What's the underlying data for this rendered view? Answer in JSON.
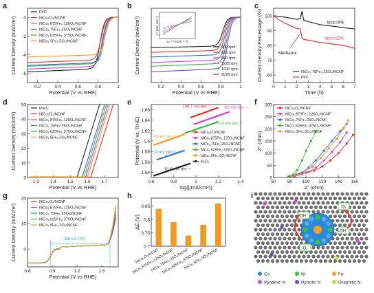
{
  "colors": {
    "black": "#222222",
    "red": "#e8312f",
    "blue": "#2f74d0",
    "magenta": "#d63bd6",
    "green": "#38b838",
    "orange": "#f29a1f",
    "gray": "#9a9a9a",
    "purple": "#6a4bd8",
    "cyan": "#1fb2c6"
  },
  "panels": {
    "a": {
      "label": "a"
    },
    "b": {
      "label": "b"
    },
    "c": {
      "label": "c"
    },
    "d": {
      "label": "d"
    },
    "e": {
      "label": "e"
    },
    "f": {
      "label": "f"
    },
    "g": {
      "label": "g"
    },
    "h": {
      "label": "h"
    },
    "i": {
      "label": "i"
    }
  },
  "chart_data": [
    {
      "panel": "a",
      "type": "line",
      "xlabel": "Potential (V vs RHE)",
      "ylabel": "Current Density (mA/cm²)",
      "xlim": [
        0.1,
        1.0
      ],
      "ylim": [
        -7,
        1
      ],
      "xticks": [
        0.2,
        0.4,
        0.6,
        0.8,
        1.0
      ],
      "yticks": [
        -6,
        -4,
        -2,
        0
      ],
      "legend": [
        "Pt/C",
        "NiCo₂O₄/NCNF",
        "NiCo₁.875Fe₀.125O₄/NCNF",
        "NiCo₁.75Fe₀.25O₄/NCNF",
        "NiCo₁.625Fe₀.375O₄/NCNF",
        "NiCo₁.5Fe₀.5O₄/NCNF"
      ],
      "series": [
        {
          "color": "black",
          "plateau": -5.9,
          "onset": 0.82
        },
        {
          "color": "red",
          "plateau": -4.9,
          "onset": 0.83
        },
        {
          "color": "magenta",
          "plateau": -5.6,
          "onset": 0.84
        },
        {
          "color": "blue",
          "plateau": -5.2,
          "onset": 0.85
        },
        {
          "color": "green",
          "plateau": -5.3,
          "onset": 0.86
        },
        {
          "color": "orange",
          "plateau": -4.3,
          "onset": 0.87
        }
      ]
    },
    {
      "panel": "b",
      "type": "line",
      "xlabel": "Potential (V vs RHE)",
      "ylabel": "Current Density (mA/cm²)",
      "xlim": [
        0.1,
        1.0
      ],
      "ylim": [
        -7,
        1
      ],
      "xticks": [
        0.2,
        0.4,
        0.6,
        0.8,
        1.0
      ],
      "legend": [
        "400 rpm",
        "625 rpm",
        "900 rpm",
        "1225 rpm",
        "1600 rpm",
        "2025 rpm"
      ],
      "series": [
        {
          "color": "black",
          "plateau": -3.3,
          "onset": 0.82
        },
        {
          "color": "red",
          "plateau": -3.8,
          "onset": 0.83
        },
        {
          "color": "blue",
          "plateau": -4.3,
          "onset": 0.84
        },
        {
          "color": "magenta",
          "plateau": -4.9,
          "onset": 0.85
        },
        {
          "color": "green",
          "plateau": -5.3,
          "onset": 0.86
        },
        {
          "color": "purple",
          "plateau": -5.9,
          "onset": 0.87
        }
      ],
      "inset": {
        "xlabel": "ω⁻¹ᐟ² (rpm⁻¹ᐟ²)",
        "ylabel": "j⁻¹ (cm² mA⁻¹)"
      }
    },
    {
      "panel": "c",
      "type": "line",
      "xlabel": "Time (h)",
      "ylabel": "Current Density Percentage (%)",
      "xlim": [
        0,
        7
      ],
      "ylim": [
        55,
        105
      ],
      "xticks": [
        0,
        1,
        2,
        3,
        4,
        5,
        6,
        7
      ],
      "yticks": [
        60,
        70,
        80,
        90,
        100
      ],
      "legend": [
        "NiCo₁.75Fe₀.25O₄/NCNF",
        "Pt/C"
      ],
      "annotations": {
        "loss1": "loss=9%",
        "loss2": "loss=22%",
        "methanol": "Methanol"
      },
      "series": [
        {
          "color": "black",
          "points": [
            [
              0,
              100
            ],
            [
              1,
              99
            ],
            [
              2,
              97.5
            ],
            [
              2.3,
              98
            ],
            [
              2.45,
              103
            ],
            [
              2.6,
              97
            ],
            [
              3,
              96
            ],
            [
              4,
              94
            ],
            [
              5,
              93
            ],
            [
              6,
              92
            ],
            [
              7,
              91
            ]
          ]
        },
        {
          "color": "red",
          "points": [
            [
              0,
              100
            ],
            [
              0.5,
              97
            ],
            [
              1,
              95
            ],
            [
              1.5,
              93
            ],
            [
              2,
              91.5
            ],
            [
              2.3,
              91
            ],
            [
              2.45,
              85
            ],
            [
              2.6,
              84
            ],
            [
              3,
              83.5
            ],
            [
              4,
              82
            ],
            [
              5,
              81
            ],
            [
              6,
              80
            ],
            [
              7,
              78
            ]
          ]
        }
      ]
    },
    {
      "panel": "d",
      "type": "line",
      "xlabel": "Potential (V vs RHE)",
      "ylabel": "Current Density (mA/cm²)",
      "xlim": [
        1.25,
        1.78
      ],
      "ylim": [
        0,
        50
      ],
      "xticks": [
        1.3,
        1.4,
        1.5,
        1.6,
        1.7
      ],
      "yticks": [
        0,
        10,
        20,
        30,
        40,
        50
      ],
      "legend": [
        "RuO₂",
        "NiCo₂O₄/NCNF",
        "NiCo₁.875Fe₀.125O₄/NCNF",
        "NiCo₁.75Fe₀.25O₄/NCNF",
        "NiCo₁.625Fe₀.375O₄/NCNF",
        "NiCo₁.5Fe₀.5O₄/NCNF"
      ],
      "series": [
        {
          "color": "black",
          "onset": 1.54
        },
        {
          "color": "red",
          "onset": 1.62
        },
        {
          "color": "magenta",
          "onset": 1.59
        },
        {
          "color": "blue",
          "onset": 1.57
        },
        {
          "color": "green",
          "onset": 1.58
        },
        {
          "color": "orange",
          "onset": 1.6
        }
      ]
    },
    {
      "panel": "e",
      "type": "scatter",
      "xlabel": "log(j(mA/cm²))",
      "ylabel": "Potential (V vs. RHE)",
      "xlim": [
        0.6,
        1.4
      ],
      "ylim": [
        1.53,
        1.67
      ],
      "xticks": [
        0.6,
        0.8,
        1.0,
        1.2,
        1.4
      ],
      "yticks": [
        1.54,
        1.56,
        1.58,
        1.6,
        1.62,
        1.64,
        1.66
      ],
      "legend": [
        "NiCo₂O₄/NCNF",
        "NiCo₁.875Fe₀.125O₄/NCNF",
        "NiCo₁.75Fe₀.25O₄/NCNF",
        "NiCo₁.625Fe₀.375O₄/NCNF",
        "NiCo₁.5Fe₀.5O₄/NCNF",
        "RuO₂"
      ],
      "slopes": [
        {
          "color": "red",
          "text": "100.7 mV dec⁻¹",
          "x0": 0.95,
          "y0": 1.645,
          "x1": 1.2,
          "y1": 1.664
        },
        {
          "color": "magenta",
          "text": "66 mV dec⁻¹",
          "x0": 0.98,
          "y0": 1.632,
          "x1": 1.3,
          "y1": 1.656
        },
        {
          "color": "green",
          "text": "70.6 mV dec⁻¹",
          "x0": 0.9,
          "y0": 1.615,
          "x1": 1.2,
          "y1": 1.637
        },
        {
          "color": "orange",
          "text": "80 mV dec⁻¹",
          "x0": 0.62,
          "y0": 1.592,
          "x1": 0.9,
          "y1": 1.613
        },
        {
          "color": "blue",
          "text": "72 mV dec⁻¹",
          "x0": 0.65,
          "y0": 1.564,
          "x1": 0.9,
          "y1": 1.582
        },
        {
          "color": "black",
          "text": "81.6 mV dec⁻¹",
          "x0": 0.62,
          "y0": 1.533,
          "x1": 0.95,
          "y1": 1.557
        }
      ]
    },
    {
      "panel": "f",
      "type": "line",
      "xlabel": "Z' (ohm)",
      "ylabel": "Z'' (ohm)",
      "xlim": [
        60,
        160
      ],
      "ylim": [
        0,
        300
      ],
      "xticks": [
        60,
        80,
        100,
        120,
        140,
        160
      ],
      "yticks": [
        0,
        50,
        100,
        150,
        200,
        250,
        300
      ],
      "legend": [
        "NiCo₂O₄/NCNF",
        "NiCo₁.875Fe₀.125O₄/NCNF",
        "NiCo₁.75Fe₀.25O₄/NCNF",
        "NiCo₁.625Fe₀.375O₄/NCNF",
        "NiCo₁.5Fe₀.5O₄/NCNF"
      ],
      "series": [
        {
          "color": "red",
          "points": [
            [
              84,
              5
            ],
            [
              92,
              15
            ],
            [
              100,
              20
            ],
            [
              110,
              28
            ],
            [
              120,
              45
            ],
            [
              130,
              70
            ],
            [
              140,
              100
            ],
            [
              150,
              140
            ],
            [
              158,
              175
            ]
          ]
        },
        {
          "color": "magenta",
          "points": [
            [
              86,
              5
            ],
            [
              95,
              14
            ],
            [
              103,
              22
            ],
            [
              112,
              40
            ],
            [
              122,
              70
            ],
            [
              132,
              105
            ],
            [
              142,
              145
            ],
            [
              150,
              185
            ]
          ]
        },
        {
          "color": "blue",
          "points": [
            [
              80,
              5
            ],
            [
              88,
              12
            ],
            [
              95,
              20
            ],
            [
              103,
              40
            ],
            [
              112,
              70
            ],
            [
              122,
              110
            ],
            [
              132,
              150
            ],
            [
              142,
              190
            ],
            [
              150,
              220
            ]
          ]
        },
        {
          "color": "green",
          "points": [
            [
              78,
              4
            ],
            [
              84,
              12
            ],
            [
              89,
              30
            ],
            [
              95,
              70
            ],
            [
              100,
              110
            ],
            [
              106,
              150
            ],
            [
              112,
              190
            ]
          ]
        },
        {
          "color": "orange",
          "points": [
            [
              82,
              4
            ],
            [
              90,
              10
            ],
            [
              98,
              20
            ],
            [
              108,
              45
            ],
            [
              118,
              80
            ],
            [
              128,
              120
            ],
            [
              138,
              160
            ],
            [
              146,
              200
            ],
            [
              152,
              235
            ]
          ]
        }
      ]
    },
    {
      "panel": "g",
      "type": "line",
      "xlabel": "Potential (V vs RHE)",
      "ylabel": "Current Density (mA/cm²)",
      "xlim": [
        0.6,
        1.7
      ],
      "ylim": [
        -7,
        20
      ],
      "xticks": [
        0.6,
        0.9,
        1.2,
        1.5
      ],
      "yticks": [
        0,
        10,
        20
      ],
      "legend": [
        "NiCo₂O₄/NCNF",
        "NiCo₁.875Fe₀.125O₄/NCNF",
        "NiCo₁.75Fe₀.25O₄/NCNF",
        "NiCo₁.625Fe₀.375O₄/NCNF",
        "NiCo₁.5Fe₀.5O₄/NCNF"
      ],
      "annotation": "ΔE=0.74V"
    },
    {
      "panel": "h",
      "type": "bar",
      "ylabel": "ΔE (V)",
      "ylim": [
        0.7,
        0.88
      ],
      "yticks": [
        0.7,
        0.75,
        0.8,
        0.85
      ],
      "categories": [
        "NiCo₂O₄/NCNF",
        "NiCo₁.875Fe₀.125O₄/NCNF",
        "NiCo₁.75Fe₀.25O₄/NCNF",
        "NiCo₁.625Fe₀.375O₄/NCNF",
        "NiCo₁.5Fe₀.5O₄/NCNF"
      ],
      "values": [
        0.84,
        0.79,
        0.74,
        0.78,
        0.86
      ],
      "color": "orange"
    }
  ],
  "panel_i": {
    "legend": [
      {
        "text": "Co",
        "color": "#2a8ad8"
      },
      {
        "text": "Ni",
        "color": "#3cc23c"
      },
      {
        "text": "Fe",
        "color": "#f2a21f"
      },
      {
        "text": "Pyridinic N",
        "color": "#d44bd4"
      },
      {
        "text": "Pyrrolic N",
        "color": "#6a4bd8"
      },
      {
        "text": "Graphitic N",
        "color": "#b7e04a"
      }
    ],
    "labels": {
      "o2a": "O₂",
      "o2b": "O₂",
      "oh1": "OH⁻",
      "oh2": "OH⁻"
    }
  }
}
